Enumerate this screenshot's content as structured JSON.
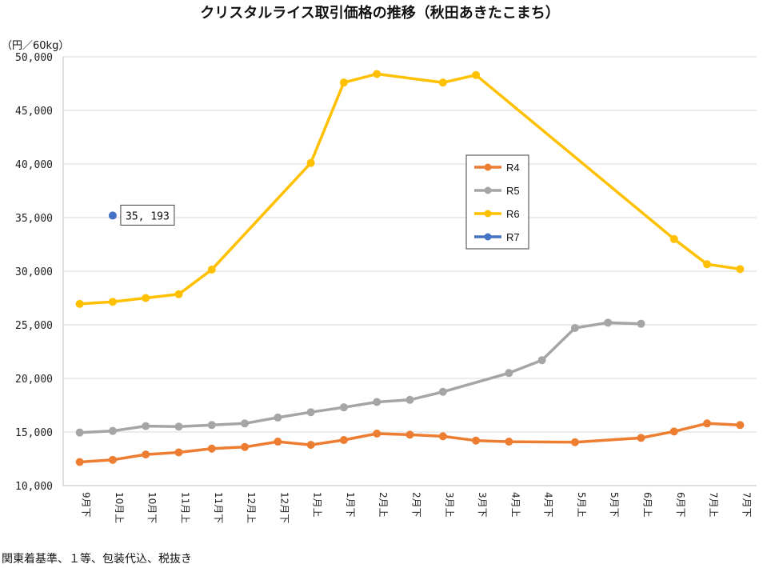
{
  "chart_data": {
    "type": "line",
    "title": "クリスタルライス取引価格の推移（秋田あきたこまち）",
    "ylabel": "（円／60kg）",
    "note": "関東着基準、１等、包装代込、税抜き",
    "ylim": [
      10000,
      50000
    ],
    "yticks": [
      10000,
      15000,
      20000,
      25000,
      30000,
      35000,
      40000,
      45000,
      50000
    ],
    "ytick_labels": [
      "10,000",
      "15,000",
      "20,000",
      "25,000",
      "30,000",
      "35,000",
      "40,000",
      "45,000",
      "50,000"
    ],
    "categories": [
      "9月下",
      "10月上",
      "10月下",
      "11月上",
      "11月下",
      "12月上",
      "12月下",
      "1月上",
      "1月下",
      "2月上",
      "2月下",
      "3月上",
      "3月下",
      "4月上",
      "4月下",
      "5月上",
      "5月下",
      "6月上",
      "6月下",
      "7月上",
      "7月下"
    ],
    "legend": [
      "R4",
      "R5",
      "R6",
      "R7"
    ],
    "series": [
      {
        "name": "R4",
        "color": "#ED7D31",
        "values": [
          12200,
          12400,
          12900,
          13100,
          13450,
          13600,
          14100,
          13800,
          14250,
          14850,
          14750,
          14600,
          14200,
          14100,
          null,
          14050,
          null,
          14450,
          15050,
          15800,
          15650
        ]
      },
      {
        "name": "R5",
        "color": "#A5A5A5",
        "values": [
          14950,
          15100,
          15550,
          15500,
          15650,
          15800,
          16350,
          16850,
          17300,
          17800,
          18000,
          18750,
          null,
          20500,
          21700,
          24700,
          25200,
          25100,
          null,
          null,
          null
        ]
      },
      {
        "name": "R6",
        "color": "#FFC000",
        "values": [
          26950,
          27150,
          27500,
          27850,
          30150,
          null,
          null,
          40100,
          47600,
          48400,
          null,
          47600,
          48300,
          null,
          null,
          null,
          null,
          null,
          33000,
          30650,
          30200
        ]
      },
      {
        "name": "R7",
        "color": "#4472C4",
        "values": [
          null,
          35193,
          null,
          null,
          null,
          null,
          null,
          null,
          null,
          null,
          null,
          null,
          null,
          null,
          null,
          null,
          null,
          null,
          null,
          null,
          null
        ]
      }
    ],
    "annotations": [
      {
        "series": "R7",
        "category": "10月上",
        "text": "35, 193"
      }
    ]
  }
}
